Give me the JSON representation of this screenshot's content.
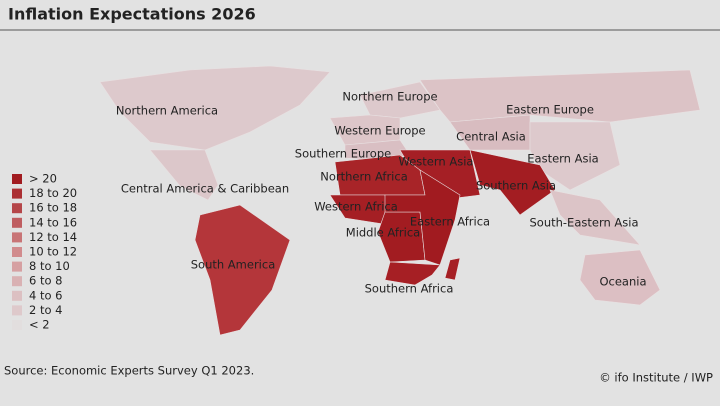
{
  "title": "Inflation Expectations 2026",
  "regions": [
    {
      "name": "Northern America",
      "color": "#ddc9cc"
    },
    {
      "name": "Central America & Caribbean",
      "color": "#dcc7ca"
    },
    {
      "name": "South America",
      "color": "#b4363a"
    },
    {
      "name": "Northern Europe",
      "color": "#ddc9cc"
    },
    {
      "name": "Western Europe",
      "color": "#ddc6c9"
    },
    {
      "name": "Southern Europe",
      "color": "#d9bfc3"
    },
    {
      "name": "Eastern Europe",
      "color": "#dcc3c6"
    },
    {
      "name": "Central Asia",
      "color": "#d8bcc0"
    },
    {
      "name": "Eastern Asia",
      "color": "#ddc9cc"
    },
    {
      "name": "Western Asia",
      "color": "#a51f25"
    },
    {
      "name": "Southern Asia",
      "color": "#a31d22"
    },
    {
      "name": "South-Eastern Asia",
      "color": "#dcc4c7"
    },
    {
      "name": "Northern Africa",
      "color": "#a82428"
    },
    {
      "name": "Western Africa",
      "color": "#a51f24"
    },
    {
      "name": "Middle Africa",
      "color": "#a21c21"
    },
    {
      "name": "Eastern Africa",
      "color": "#a11b20"
    },
    {
      "name": "Southern Africa",
      "color": "#a61f24"
    },
    {
      "name": "Oceania",
      "color": "#dcbfc3"
    }
  ],
  "legend": [
    {
      "label": "> 20",
      "color": "#a11b20"
    },
    {
      "label": "18 to 20",
      "color": "#ab2f33"
    },
    {
      "label": "16 to 18",
      "color": "#b54649"
    },
    {
      "label": "14 to 16",
      "color": "#bf5d60"
    },
    {
      "label": "12 to 14",
      "color": "#c87476"
    },
    {
      "label": "10 to 12",
      "color": "#d18b8d"
    },
    {
      "label": "8 to 10",
      "color": "#d6a0a2"
    },
    {
      "label": "6 to 8",
      "color": "#d9b1b3"
    },
    {
      "label": "4 to 6",
      "color": "#dcc0c2"
    },
    {
      "label": "2 to 4",
      "color": "#dec9cb"
    },
    {
      "label": "< 2",
      "color": "#e2dede"
    }
  ],
  "source": "Source: Economic Experts Survey Q1 2023.",
  "credit": "© ifo Institute / IWP"
}
